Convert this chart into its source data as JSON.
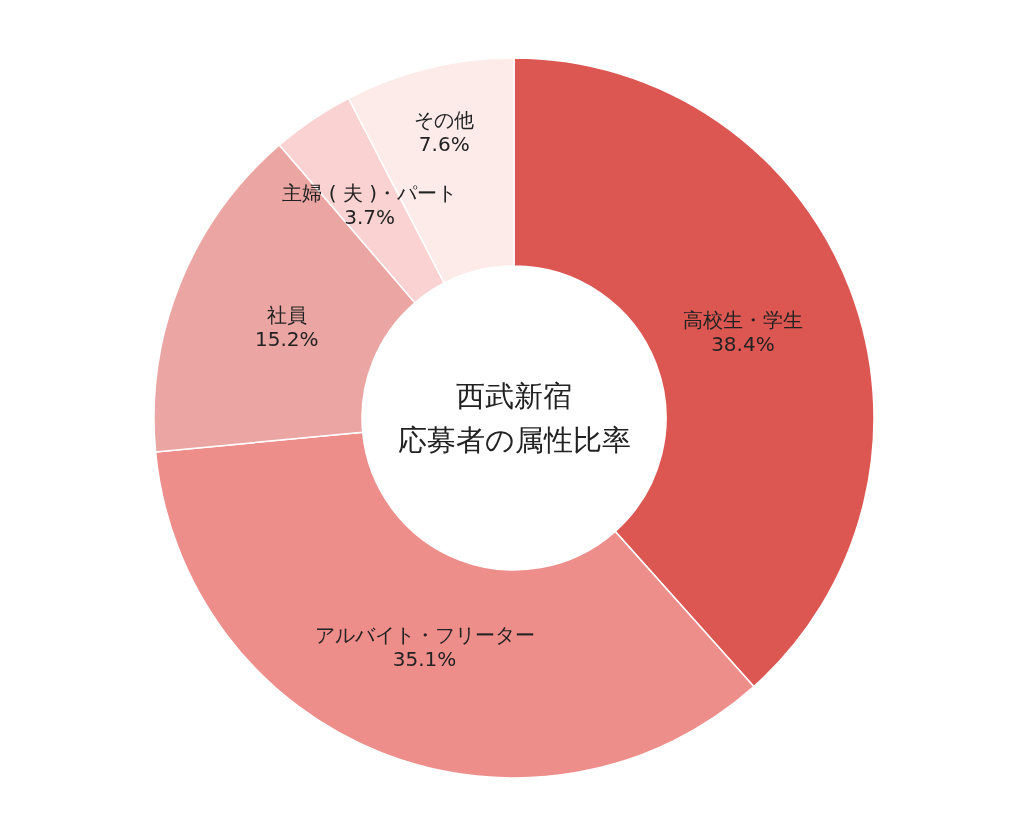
{
  "chart_data": {
    "type": "donut",
    "title": "西武新宿",
    "subtitle": "応募者の属性比率",
    "categories": [
      "高校生・学生",
      "アルバイト・フリーター",
      "社員",
      "主婦 ( 夫 )・パート",
      "その他"
    ],
    "values": [
      38.4,
      35.1,
      15.2,
      3.7,
      7.6
    ],
    "value_labels": [
      "38.4%",
      "35.1%",
      "15.2%",
      "3.7%",
      "7.6%"
    ],
    "colors": [
      "#dc5752",
      "#ee8e8b",
      "#eba6a3",
      "#f9d2d1",
      "#fdebea"
    ]
  }
}
